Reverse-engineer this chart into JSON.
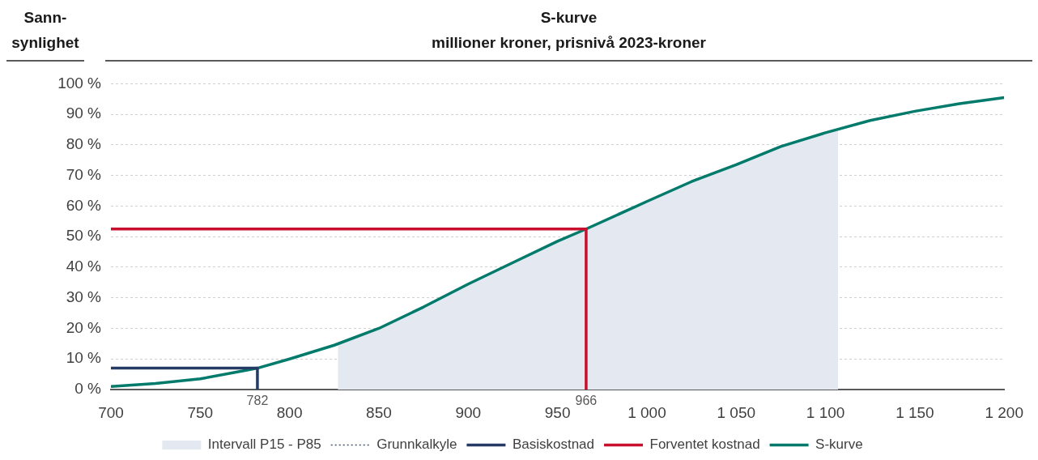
{
  "chart_data": {
    "type": "line",
    "title": "S-kurve",
    "subtitle": "millioner kroner, prisnivå 2023-kroner",
    "ylabel": "Sann-synlighet",
    "series": [
      {
        "name": "Intervall P15 - P85",
        "type": "area",
        "color": "#e4e8f0",
        "x": [
          827,
          850,
          875,
          900,
          925,
          950,
          966,
          1000,
          1025,
          1050,
          1075,
          1100,
          1107
        ],
        "values": [
          15,
          20,
          27,
          34.5,
          41.5,
          48.5,
          52.5,
          61.5,
          68,
          73.5,
          79.5,
          84,
          85
        ]
      },
      {
        "name": "Grunnkalkyle",
        "color": "#44546a",
        "line_style": "dotted"
      },
      {
        "name": "Basiskostnad",
        "color": "#253a64",
        "x": [
          700,
          782,
          782
        ],
        "values": [
          7,
          7,
          0
        ]
      },
      {
        "name": "Forventet kostnad",
        "color": "#c8102e",
        "x": [
          700,
          966,
          966
        ],
        "values": [
          52.5,
          52.5,
          0
        ]
      },
      {
        "name": "S-kurve",
        "color": "#007b6b",
        "x": [
          700,
          725,
          750,
          775,
          782,
          800,
          825,
          850,
          875,
          900,
          925,
          950,
          966,
          1000,
          1025,
          1050,
          1075,
          1100,
          1125,
          1150,
          1175,
          1200
        ],
        "values": [
          1,
          2,
          3.5,
          6.2,
          7,
          10,
          14.5,
          20,
          27,
          34.5,
          41.5,
          48.5,
          52.5,
          61.5,
          68,
          73.5,
          79.5,
          84,
          88,
          91,
          93.5,
          95.5
        ]
      }
    ],
    "annotations": [
      {
        "text": "782",
        "x": 782,
        "y": 0
      },
      {
        "text": "966",
        "x": 966,
        "y": 0
      }
    ],
    "xlim": [
      700,
      1200
    ],
    "xticks": [
      700,
      750,
      800,
      850,
      900,
      950,
      {
        "value": 1000,
        "label": "1 000"
      },
      {
        "value": 1050,
        "label": "1 050"
      },
      {
        "value": 1100,
        "label": "1 100"
      },
      {
        "value": 1150,
        "label": "1 150"
      },
      {
        "value": 1200,
        "label": "1 200"
      }
    ],
    "ylim": [
      0,
      100
    ],
    "yticks": [
      {
        "value": 0,
        "label": "0 %"
      },
      {
        "value": 10,
        "label": "10 %"
      },
      {
        "value": 20,
        "label": "20 %"
      },
      {
        "value": 30,
        "label": "30 %"
      },
      {
        "value": 40,
        "label": "40 %"
      },
      {
        "value": 50,
        "label": "50 %"
      },
      {
        "value": 60,
        "label": "60 %"
      },
      {
        "value": 70,
        "label": "70 %"
      },
      {
        "value": 80,
        "label": "80 %"
      },
      {
        "value": 90,
        "label": "90 %"
      },
      {
        "value": 100,
        "label": "100 %"
      }
    ],
    "grid": "y",
    "legend": "bottom"
  }
}
